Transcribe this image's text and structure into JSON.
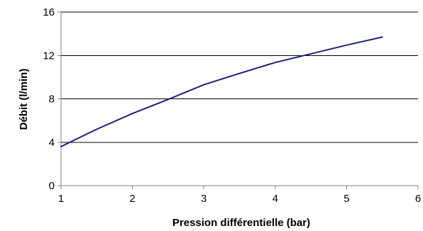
{
  "chart_data": {
    "type": "line",
    "title": "",
    "xlabel": "Pression différentielle (bar)",
    "ylabel": "Débit (l/min)",
    "xlim": [
      1,
      6
    ],
    "ylim": [
      0,
      16
    ],
    "xticks": [
      1,
      2,
      3,
      4,
      5,
      6
    ],
    "yticks": [
      0,
      4,
      8,
      12,
      16
    ],
    "grid": {
      "horizontal": true,
      "vertical": false
    },
    "legend": "none",
    "series": [
      {
        "color": "#1f1f7a",
        "x": [
          1,
          1.5,
          2,
          2.5,
          3,
          3.5,
          4,
          4.5,
          5,
          5.5
        ],
        "y": [
          3.6,
          5.2,
          6.65,
          7.95,
          9.3,
          10.35,
          11.35,
          12.15,
          12.95,
          13.7
        ]
      }
    ]
  }
}
